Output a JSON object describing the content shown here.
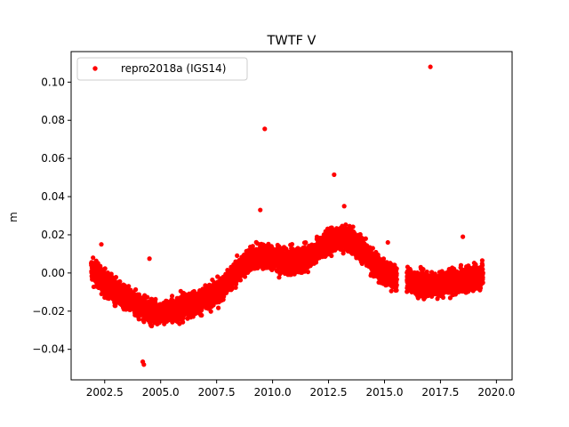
{
  "chart_data": {
    "type": "scatter",
    "title": "TWTF V",
    "xlabel": "",
    "ylabel": "m",
    "xlim": [
      2001.0,
      2020.7
    ],
    "ylim": [
      -0.056,
      0.116
    ],
    "xticks": [
      2002.5,
      2005.0,
      2007.5,
      2010.0,
      2012.5,
      2015.0,
      2017.5,
      2020.0
    ],
    "xtick_labels": [
      "2002.5",
      "2005.0",
      "2007.5",
      "2010.0",
      "2012.5",
      "2015.0",
      "2017.5",
      "2020.0"
    ],
    "yticks": [
      -0.04,
      -0.02,
      0.0,
      0.02,
      0.04,
      0.06,
      0.08,
      0.1
    ],
    "ytick_labels": [
      "−0.04",
      "−0.02",
      "0.00",
      "0.02",
      "0.04",
      "0.06",
      "0.08",
      "0.10"
    ],
    "grid": false,
    "legend_position": "top-left",
    "series": [
      {
        "name": "repro2018a (IGS14)",
        "color": "#ff0000",
        "marker": "circle",
        "trend": [
          [
            2001.9,
            0.002
          ],
          [
            2002.5,
            -0.005
          ],
          [
            2003.0,
            -0.01
          ],
          [
            2003.5,
            -0.014
          ],
          [
            2004.0,
            -0.017
          ],
          [
            2004.5,
            -0.02
          ],
          [
            2005.0,
            -0.021
          ],
          [
            2005.5,
            -0.02
          ],
          [
            2006.0,
            -0.018
          ],
          [
            2006.5,
            -0.016
          ],
          [
            2007.0,
            -0.014
          ],
          [
            2007.5,
            -0.011
          ],
          [
            2008.0,
            -0.005
          ],
          [
            2008.5,
            0.002
          ],
          [
            2009.0,
            0.007
          ],
          [
            2009.5,
            0.009
          ],
          [
            2010.0,
            0.008
          ],
          [
            2010.5,
            0.006
          ],
          [
            2011.0,
            0.006
          ],
          [
            2011.5,
            0.008
          ],
          [
            2012.0,
            0.012
          ],
          [
            2012.5,
            0.016
          ],
          [
            2013.0,
            0.019
          ],
          [
            2013.5,
            0.018
          ],
          [
            2014.0,
            0.012
          ],
          [
            2014.5,
            0.005
          ],
          [
            2015.0,
            0.0
          ],
          [
            2015.4,
            -0.002
          ],
          [
            2016.1,
            -0.004
          ],
          [
            2016.5,
            -0.005
          ],
          [
            2017.0,
            -0.006
          ],
          [
            2017.5,
            -0.006
          ],
          [
            2018.0,
            -0.005
          ],
          [
            2018.5,
            -0.004
          ],
          [
            2019.0,
            -0.002
          ],
          [
            2019.4,
            -0.001
          ]
        ],
        "gaps": [
          [
            2015.55,
            2016.0
          ]
        ],
        "scatter_sd": 0.0055,
        "outliers": [
          {
            "x": 2017.05,
            "y": 0.108
          },
          {
            "x": 2009.65,
            "y": 0.0755
          },
          {
            "x": 2012.75,
            "y": 0.0515
          },
          {
            "x": 2009.45,
            "y": 0.033
          },
          {
            "x": 2013.2,
            "y": 0.035
          },
          {
            "x": 2002.35,
            "y": 0.015
          },
          {
            "x": 2004.5,
            "y": 0.0075
          },
          {
            "x": 2004.2,
            "y": -0.0465
          },
          {
            "x": 2004.25,
            "y": -0.048
          },
          {
            "x": 2018.5,
            "y": 0.019
          },
          {
            "x": 2015.15,
            "y": 0.016
          }
        ]
      }
    ]
  }
}
